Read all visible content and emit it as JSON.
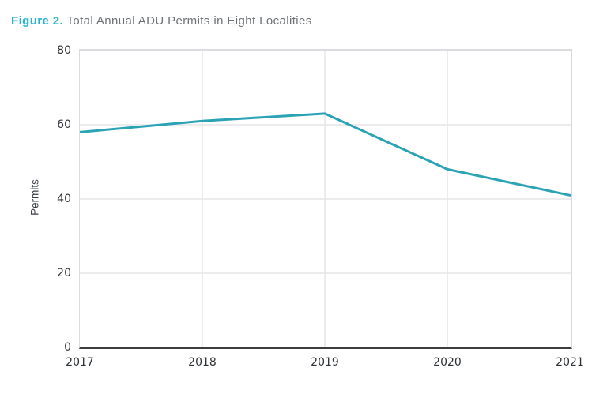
{
  "title": {
    "label": "Figure 2.",
    "text": " Total Annual ADU Permits in Eight Localities"
  },
  "colors": {
    "accent": "#29b5d2",
    "title_text": "#6e7377",
    "line": "#2ba3b5",
    "grid": "#e6e6e9",
    "plot_border": "#dadce0",
    "axis_line": "#3d3d3f",
    "tick_text": "#2f3337"
  },
  "chart_data": {
    "type": "line",
    "categories": [
      "2017",
      "2018",
      "2019",
      "2020",
      "2021"
    ],
    "values": [
      58,
      61,
      63,
      48,
      41
    ],
    "title": "Total Annual ADU Permits in Eight Localities",
    "xlabel": "",
    "ylabel": "Permits",
    "ylim": [
      0,
      80
    ],
    "yticks": [
      0,
      20,
      40,
      60,
      80
    ],
    "grid": true,
    "legend": false,
    "line_width": 3
  }
}
